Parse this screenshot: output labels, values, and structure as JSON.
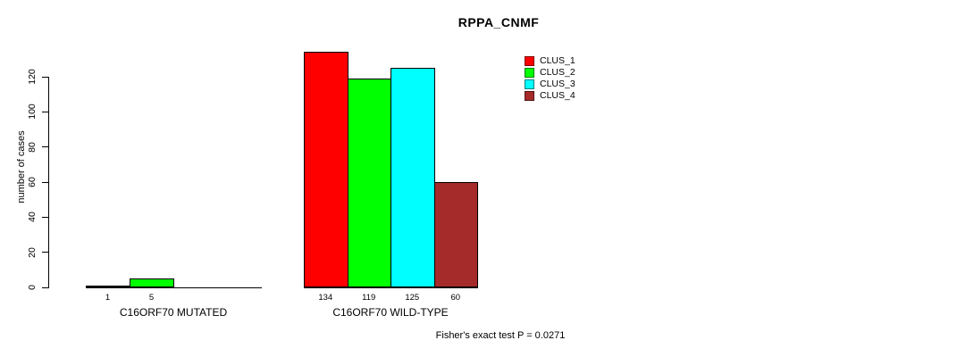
{
  "chart_data": {
    "type": "bar",
    "title": "RPPA_CNMF",
    "ylabel": "number of cases",
    "xlabel": "",
    "ylim": [
      0,
      140
    ],
    "yticks": [
      0,
      20,
      40,
      60,
      80,
      100,
      120
    ],
    "grid": false,
    "legend_position": "top-right-inner",
    "categories": [
      "C16ORF70 MUTATED",
      "C16ORF70 WILD-TYPE"
    ],
    "series": [
      {
        "name": "CLUS_1",
        "color": "#ff0000",
        "values": [
          1,
          134
        ]
      },
      {
        "name": "CLUS_2",
        "color": "#00ff00",
        "values": [
          5,
          119
        ]
      },
      {
        "name": "CLUS_3",
        "color": "#00ffff",
        "values": [
          0,
          125
        ]
      },
      {
        "name": "CLUS_4",
        "color": "#a52a2a",
        "values": [
          0,
          60
        ]
      }
    ],
    "bar_label_rule": "value shown under bar only when greater than zero",
    "annotation": "Fisher's exact test P = 0.0271"
  }
}
